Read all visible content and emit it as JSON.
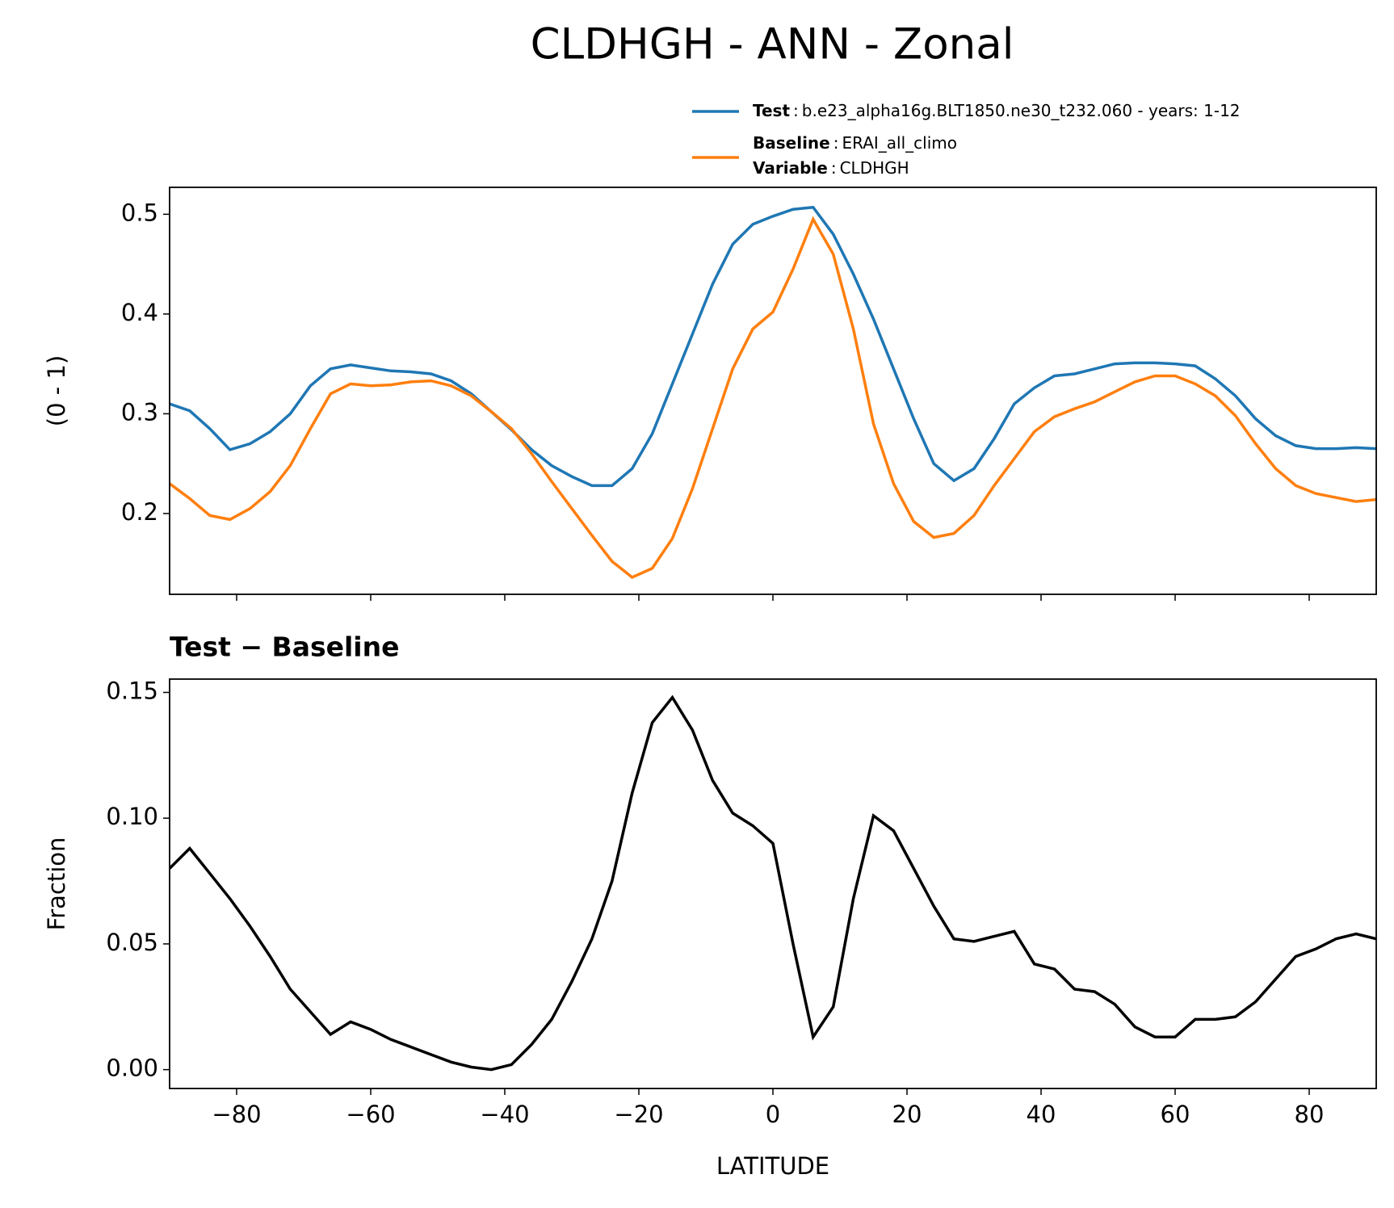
{
  "chart_data": [
    {
      "type": "line",
      "title": "CLDHGH - ANN - Zonal",
      "ylabel": "(0 - 1)",
      "legend_separator": ":",
      "legend_variable": {
        "name": "Variable",
        "value": "CLDHGH"
      },
      "x": [
        -90,
        -87,
        -84,
        -81,
        -78,
        -75,
        -72,
        -69,
        -66,
        -63,
        -60,
        -57,
        -54,
        -51,
        -48,
        -45,
        -42,
        -39,
        -36,
        -33,
        -30,
        -27,
        -24,
        -21,
        -18,
        -15,
        -12,
        -9,
        -6,
        -3,
        0,
        3,
        6,
        9,
        12,
        15,
        18,
        21,
        24,
        27,
        30,
        33,
        36,
        39,
        42,
        45,
        48,
        51,
        54,
        57,
        60,
        63,
        66,
        69,
        72,
        75,
        78,
        81,
        84,
        87,
        90
      ],
      "series": [
        {
          "name": "Test",
          "description": "b.e23_alpha16g.BLT1850.ne30_t232.060 - years: 1-12",
          "color": "#1f77b4",
          "values": [
            0.31,
            0.303,
            0.285,
            0.264,
            0.27,
            0.282,
            0.3,
            0.328,
            0.345,
            0.349,
            0.346,
            0.343,
            0.342,
            0.34,
            0.333,
            0.32,
            0.302,
            0.284,
            0.264,
            0.248,
            0.237,
            0.228,
            0.228,
            0.245,
            0.28,
            0.33,
            0.38,
            0.43,
            0.47,
            0.49,
            0.498,
            0.505,
            0.507,
            0.48,
            0.44,
            0.395,
            0.345,
            0.295,
            0.25,
            0.233,
            0.245,
            0.275,
            0.31,
            0.326,
            0.338,
            0.34,
            0.345,
            0.35,
            0.351,
            0.351,
            0.35,
            0.348,
            0.335,
            0.318,
            0.295,
            0.278,
            0.268,
            0.265,
            0.265,
            0.266,
            0.265
          ]
        },
        {
          "name": "Baseline",
          "description": "ERAI_all_climo",
          "color": "#ff7f0e",
          "values": [
            0.23,
            0.215,
            0.198,
            0.194,
            0.205,
            0.222,
            0.248,
            0.285,
            0.32,
            0.33,
            0.328,
            0.329,
            0.332,
            0.333,
            0.328,
            0.318,
            0.302,
            0.285,
            0.26,
            0.232,
            0.205,
            0.178,
            0.152,
            0.136,
            0.145,
            0.175,
            0.225,
            0.285,
            0.345,
            0.385,
            0.402,
            0.445,
            0.495,
            0.46,
            0.385,
            0.29,
            0.23,
            0.192,
            0.176,
            0.18,
            0.198,
            0.228,
            0.255,
            0.282,
            0.297,
            0.305,
            0.312,
            0.322,
            0.332,
            0.338,
            0.338,
            0.33,
            0.318,
            0.298,
            0.27,
            0.245,
            0.228,
            0.22,
            0.216,
            0.212,
            0.214
          ]
        }
      ],
      "xlim": [
        -90,
        90
      ],
      "xticks": [
        -80,
        -60,
        -40,
        -20,
        0,
        20,
        40,
        60,
        80
      ],
      "ylim": [
        0.119,
        0.527
      ],
      "yticks": [
        0.2,
        0.3,
        0.4,
        0.5
      ]
    },
    {
      "type": "line",
      "title": "Test − Baseline",
      "xlabel": "LATITUDE",
      "ylabel": "Fraction",
      "x": [
        -90,
        -87,
        -84,
        -81,
        -78,
        -75,
        -72,
        -69,
        -66,
        -63,
        -60,
        -57,
        -54,
        -51,
        -48,
        -45,
        -42,
        -39,
        -36,
        -33,
        -30,
        -27,
        -24,
        -21,
        -18,
        -15,
        -12,
        -9,
        -6,
        -3,
        0,
        3,
        6,
        9,
        12,
        15,
        18,
        21,
        24,
        27,
        30,
        33,
        36,
        39,
        42,
        45,
        48,
        51,
        54,
        57,
        60,
        63,
        66,
        69,
        72,
        75,
        78,
        81,
        84,
        87,
        90
      ],
      "series": [
        {
          "color": "#000000",
          "values": [
            0.08,
            0.088,
            0.078,
            0.068,
            0.057,
            0.045,
            0.032,
            0.023,
            0.014,
            0.019,
            0.016,
            0.012,
            0.009,
            0.006,
            0.003,
            0.001,
            0.0,
            0.002,
            0.01,
            0.02,
            0.035,
            0.052,
            0.075,
            0.11,
            0.138,
            0.148,
            0.135,
            0.115,
            0.102,
            0.097,
            0.09,
            0.05,
            0.013,
            0.025,
            0.068,
            0.101,
            0.095,
            0.08,
            0.065,
            0.052,
            0.051,
            0.053,
            0.055,
            0.042,
            0.04,
            0.032,
            0.031,
            0.026,
            0.017,
            0.013,
            0.013,
            0.02,
            0.02,
            0.021,
            0.027,
            0.036,
            0.045,
            0.048,
            0.052,
            0.054,
            0.052
          ]
        }
      ],
      "xlim": [
        -90,
        90
      ],
      "xticks": [
        {
          "value": -80,
          "label": "−80"
        },
        {
          "value": -60,
          "label": "−60"
        },
        {
          "value": -40,
          "label": "−40"
        },
        {
          "value": -20,
          "label": "−20"
        },
        0,
        20,
        40,
        60,
        80
      ],
      "ylim": [
        -0.0075,
        0.1553
      ],
      "yticks": [
        {
          "value": 0,
          "label": "0.00"
        },
        {
          "value": 0.05,
          "label": "0.05"
        },
        {
          "value": 0.1,
          "label": "0.10"
        },
        {
          "value": 0.15,
          "label": "0.15"
        }
      ]
    }
  ]
}
